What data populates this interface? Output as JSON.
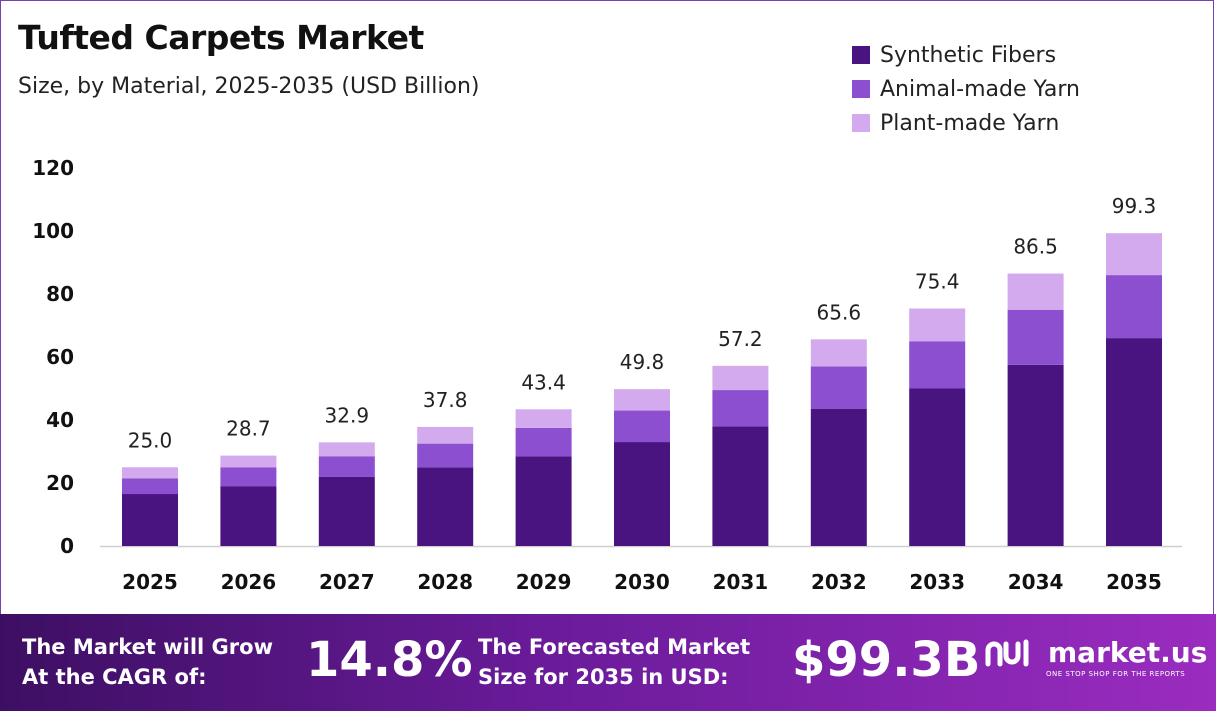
{
  "header": {
    "title": "Tufted Carpets Market",
    "subtitle": "Size, by Material, 2025-2035 (USD Billion)"
  },
  "legend": [
    {
      "label": "Synthetic Fibers",
      "color": "#4a1480"
    },
    {
      "label": "Animal-made Yarn",
      "color": "#8b4fd0"
    },
    {
      "label": "Plant-made Yarn",
      "color": "#d4aaee"
    }
  ],
  "chart_data": {
    "type": "bar",
    "stacked": true,
    "categories": [
      "2025",
      "2026",
      "2027",
      "2028",
      "2029",
      "2030",
      "2031",
      "2032",
      "2033",
      "2034",
      "2035"
    ],
    "series": [
      {
        "name": "Synthetic Fibers",
        "color": "#4a1480",
        "values": [
          16.5,
          19.0,
          22.0,
          25.0,
          28.5,
          33.0,
          38.0,
          43.5,
          50.0,
          57.5,
          66.0
        ]
      },
      {
        "name": "Animal-made Yarn",
        "color": "#8b4fd0",
        "values": [
          5.0,
          6.0,
          6.5,
          7.5,
          9.0,
          10.0,
          11.5,
          13.5,
          15.0,
          17.5,
          20.0
        ]
      },
      {
        "name": "Plant-made Yarn",
        "color": "#d4aaee",
        "values": [
          3.5,
          3.7,
          4.4,
          5.3,
          5.9,
          6.8,
          7.7,
          8.6,
          10.4,
          11.5,
          13.3
        ]
      }
    ],
    "totals": [
      "25.0",
      "28.7",
      "32.9",
      "37.8",
      "43.4",
      "49.8",
      "57.2",
      "65.6",
      "75.4",
      "86.5",
      "99.3"
    ],
    "y_ticks": [
      "0",
      "20",
      "40",
      "60",
      "80",
      "100",
      "120"
    ],
    "ylim": [
      0,
      120
    ],
    "grid": false,
    "legend_position": "top-right"
  },
  "footer": {
    "cagr_text_1": "The Market will Grow",
    "cagr_text_2": "At the CAGR of:",
    "cagr_value": "14.8%",
    "forecast_text_1": "The Forecasted Market",
    "forecast_text_2": "Size for 2035 in USD:",
    "forecast_value": "$99.3B",
    "brand_name": "market.us",
    "brand_tagline": "ONE STOP SHOP FOR THE REPORTS"
  }
}
